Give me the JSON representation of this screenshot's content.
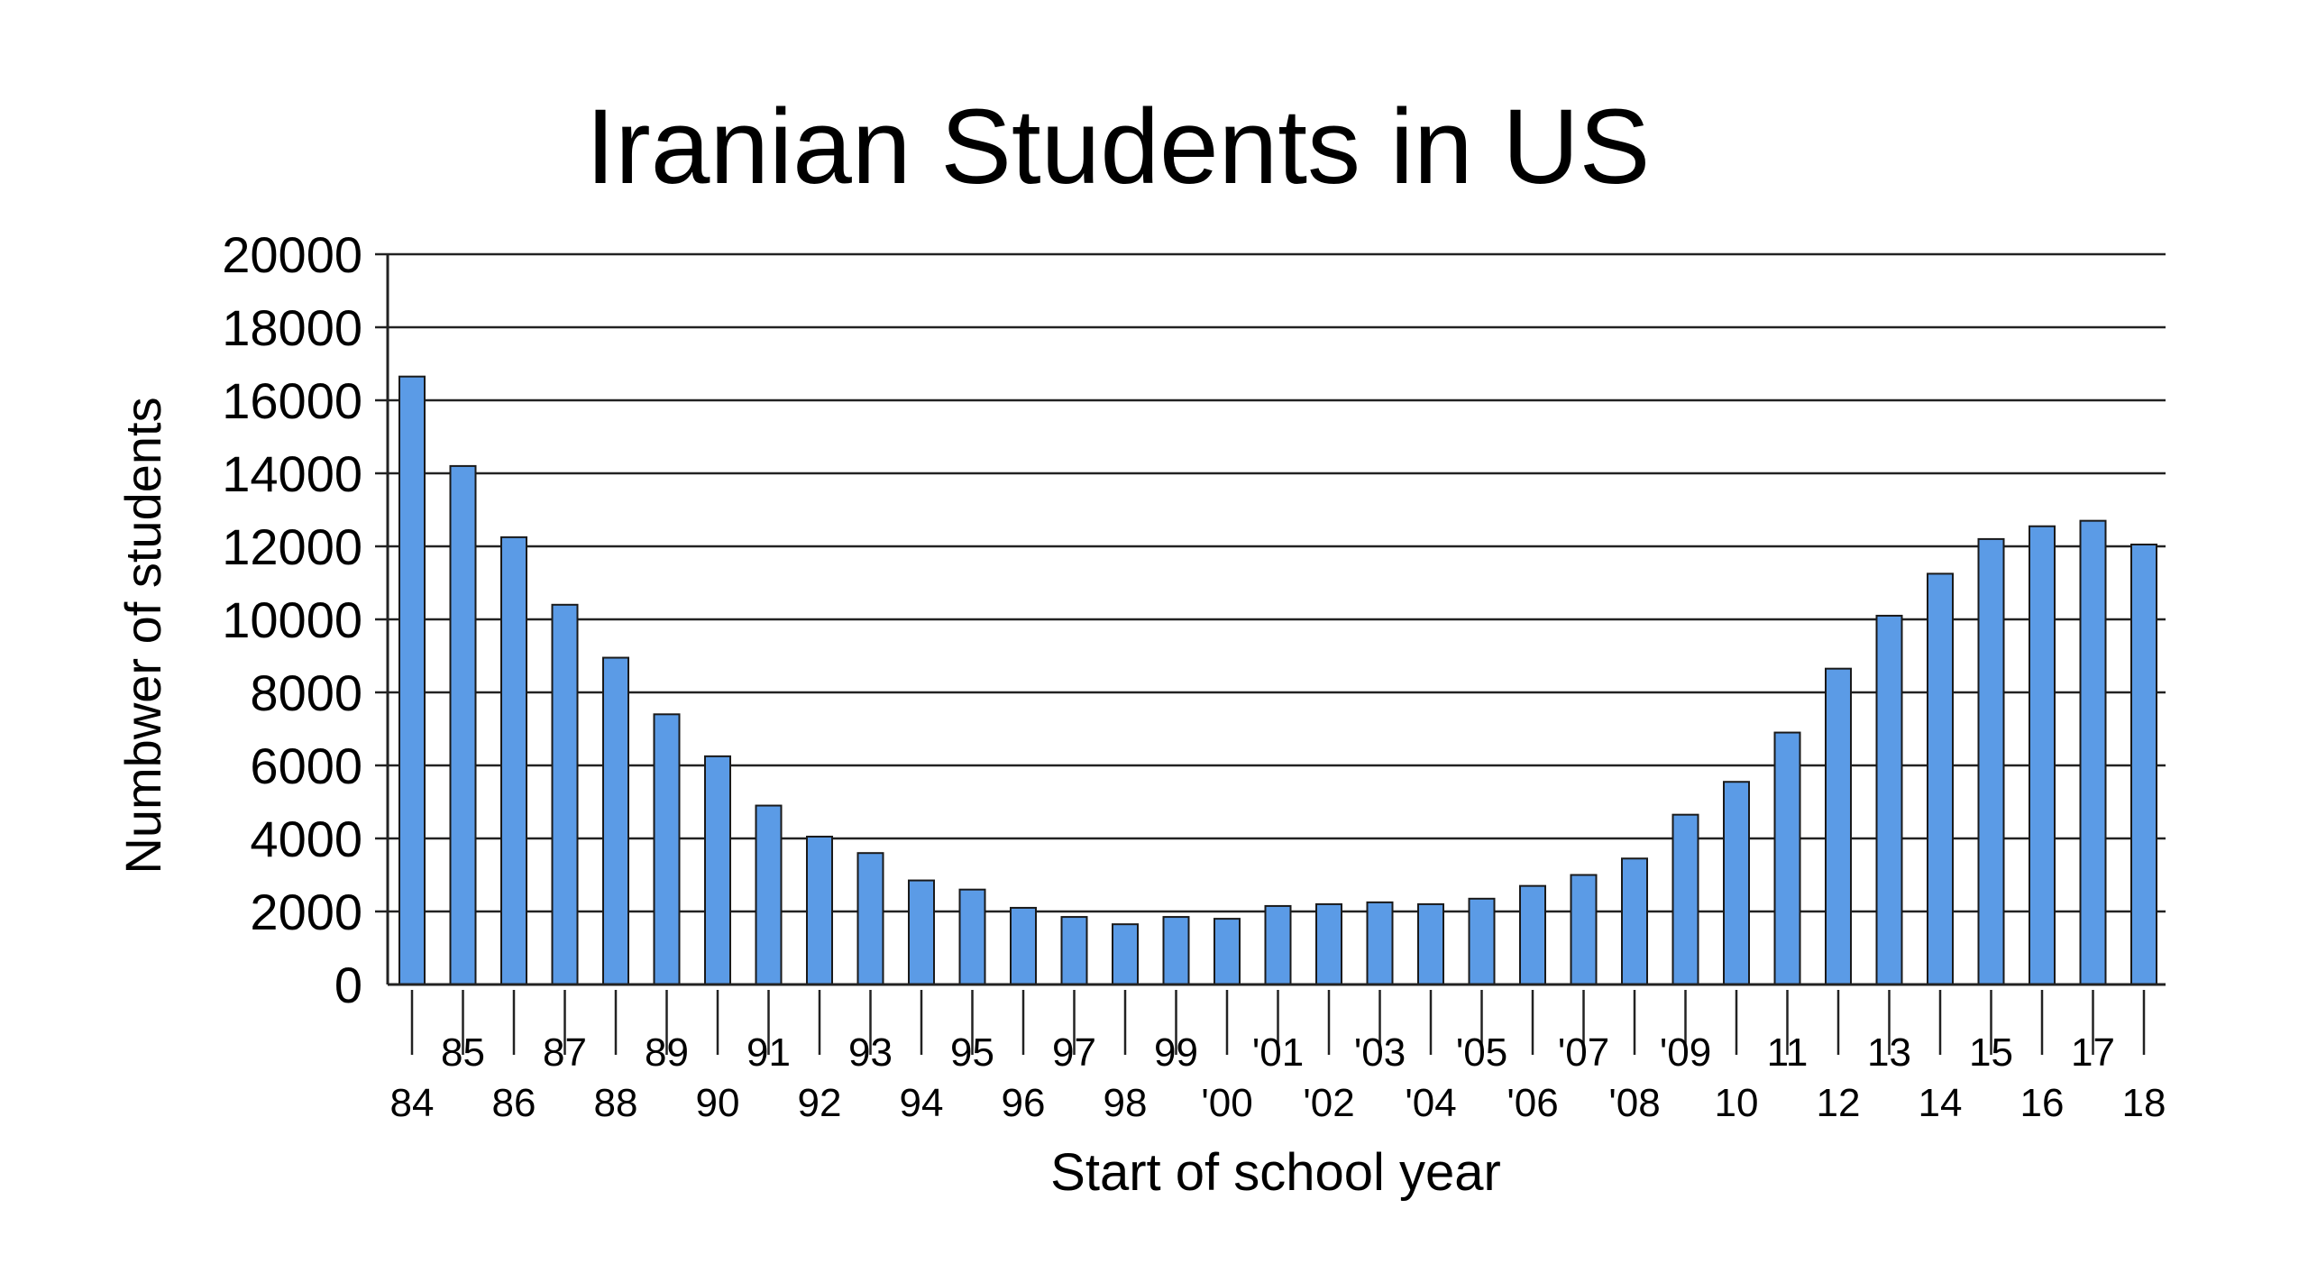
{
  "chart_data": {
    "type": "bar",
    "title": "Iranian Students in US",
    "xlabel": "Start of school year",
    "ylabel": "Numbwer of students",
    "ylim": [
      0,
      20000
    ],
    "yticks": [
      "0",
      "2000",
      "4000",
      "6000",
      "8000",
      "10000",
      "12000",
      "14000",
      "16000",
      "18000",
      "20000"
    ],
    "grid": true,
    "bar_color": "#5b9be6",
    "categories": [
      "84",
      "85",
      "86",
      "87",
      "88",
      "89",
      "90",
      "91",
      "92",
      "93",
      "94",
      "95",
      "96",
      "97",
      "98",
      "99",
      "'00",
      "'01",
      "'02",
      "'03",
      "'04",
      "'05",
      "'06",
      "'07",
      "'08",
      "'09",
      "10",
      "11",
      "12",
      "13",
      "14",
      "15",
      "16",
      "17",
      "18"
    ],
    "values": [
      16650,
      14200,
      12250,
      10400,
      8950,
      7400,
      6250,
      4900,
      4050,
      3600,
      2850,
      2600,
      2100,
      1850,
      1650,
      1850,
      1800,
      2150,
      2200,
      2250,
      2200,
      2350,
      2700,
      3000,
      3450,
      4650,
      5550,
      6900,
      8650,
      10100,
      11250,
      12200,
      12550,
      12700,
      12050
    ]
  }
}
